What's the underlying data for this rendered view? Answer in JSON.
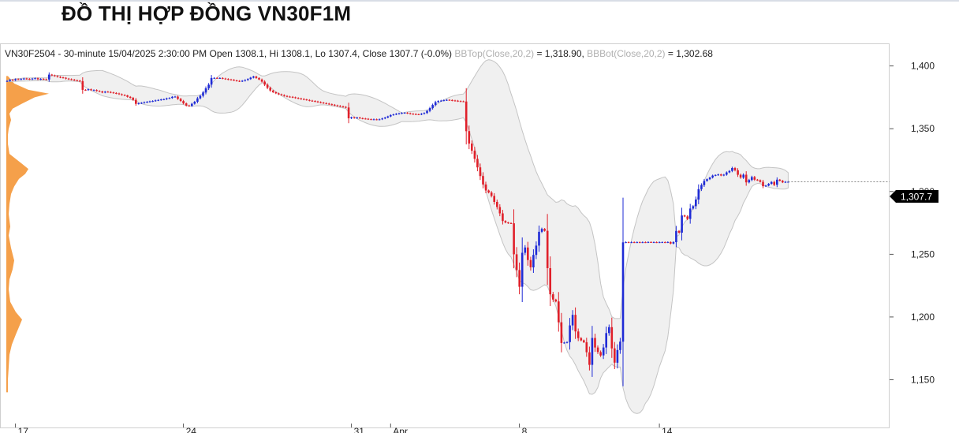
{
  "title": "ĐỒ THỊ HỢP ĐỒNG VN30F1M",
  "chart_data": {
    "type": "candlestick",
    "info": {
      "header": "VN30F2504 - 30-minute 15/04/2025 2:30:00 PM Open 1308.1, Hi 1308.1, Lo 1307.4, Close 1307.7 (-0.0%)",
      "bbtop_label": "BBTop(Close,20,2)",
      "bbtop_value": " = 1,318.90, ",
      "bbbot_label": "BBBot(Close,20,2)",
      "bbbot_value": " = 1,302.68"
    },
    "last_price": "1,307.7",
    "last_value": 1307.7,
    "ylim": [
      1112,
      1418
    ],
    "yticks": [
      {
        "value": 1400,
        "label": "1,400"
      },
      {
        "value": 1350,
        "label": "1,350"
      },
      {
        "value": 1300,
        "label": "1,300"
      },
      {
        "value": 1250,
        "label": "1,250"
      },
      {
        "value": 1200,
        "label": "1,200"
      },
      {
        "value": 1150,
        "label": "1,150"
      }
    ],
    "xticks": [
      {
        "index": 3,
        "label": "17"
      },
      {
        "index": 63,
        "label": "24"
      },
      {
        "index": 123,
        "label": "31"
      },
      {
        "index": 137,
        "label": "Apr"
      },
      {
        "index": 183,
        "label": "8"
      },
      {
        "index": 233,
        "label": "14"
      }
    ],
    "up_color": "#1f2bd6",
    "down_color": "#e0202a",
    "band_color": "#f0f0f0",
    "profile_color": "#f5a04a",
    "closes": [
      1388,
      1389,
      1388.6,
      1389.5,
      1389.3,
      1389.6,
      1390,
      1389.7,
      1389.4,
      1389.9,
      1390.2,
      1389.3,
      1389.7,
      1389.4,
      1389.2,
      1393.1,
      1392.5,
      1392,
      1391.3,
      1390.9,
      1390.6,
      1389.9,
      1389.5,
      1389.1,
      1388.6,
      1388.3,
      1387.9,
      1381,
      1380.8,
      1381.4,
      1380.7,
      1380.8,
      1380.1,
      1379.7,
      1378.9,
      1379.5,
      1379.3,
      1378.9,
      1378.5,
      1378.1,
      1377.5,
      1376.9,
      1376.5,
      1375.4,
      1374.6,
      1373,
      1369.8,
      1370.3,
      1370.6,
      1371.1,
      1371.5,
      1371.8,
      1372.1,
      1372.6,
      1372.9,
      1373.3,
      1373.5,
      1374.2,
      1374.5,
      1375.4,
      1375.6,
      1373.8,
      1372.1,
      1370.2,
      1368.5,
      1368.2,
      1369.9,
      1371.5,
      1374.2,
      1376.2,
      1378.9,
      1382.2,
      1385.1,
      1390.4,
      1390.5,
      1390.3,
      1390.4,
      1390,
      1389.6,
      1389.2,
      1389,
      1388.5,
      1388.1,
      1387.8,
      1388.2,
      1388.8,
      1389.6,
      1390.7,
      1391.6,
      1390.4,
      1389.2,
      1387.5,
      1385.1,
      1382.6,
      1380.4,
      1379.1,
      1378.2,
      1377.4,
      1376.8,
      1376.1,
      1375.6,
      1375.4,
      1375,
      1374.5,
      1374.1,
      1373.7,
      1373.3,
      1372.9,
      1372.4,
      1372.1,
      1371.7,
      1371.2,
      1370.8,
      1370.4,
      1370,
      1369.5,
      1369.1,
      1368.6,
      1368.2,
      1367.8,
      1367.4,
      1366.9,
      1358.3,
      1359.1,
      1358.5,
      1358.9,
      1358.4,
      1358.1,
      1357.9,
      1357.6,
      1357.4,
      1357.5,
      1357.3,
      1357.5,
      1358.2,
      1358.9,
      1359.8,
      1360.9,
      1361.4,
      1361.9,
      1362.2,
      1362.6,
      1362.7,
      1362.3,
      1361.9,
      1361.7,
      1361.5,
      1361.4,
      1361.9,
      1362.5,
      1364.2,
      1366.4,
      1368.9,
      1371.2,
      1372.1,
      1372.4,
      1372.7,
      1373,
      1372.8,
      1372.5,
      1372.3,
      1372,
      1371.8,
      1371.7,
      1348.1,
      1338.2,
      1332.5,
      1326,
      1319.2,
      1312.3,
      1305.6,
      1300.8,
      1299.2,
      1296.5,
      1291.7,
      1287.6,
      1282.6,
      1276.5,
      1275.3,
      1274.8,
      1274.7,
      1250,
      1237.4,
      1224.1,
      1251.2,
      1255.4,
      1245.4,
      1239.6,
      1249.5,
      1256.9,
      1267.9,
      1270.2,
      1268.7,
      1238.9,
      1218.1,
      1213.9,
      1212.4,
      1195.8,
      1179.3,
      1179.6,
      1180,
      1193.3,
      1201.7,
      1188.5,
      1183.2,
      1181.4,
      1179.9,
      1171.9,
      1161.9,
      1183.3,
      1175.7,
      1172.1,
      1169.4,
      1175.7,
      1187.2,
      1191.9,
      1175,
      1163.6,
      1173.7,
      1180.4,
      1259.5,
      1259.6,
      1259.5,
      1259.6,
      1259.5,
      1259.6,
      1259.5,
      1259.6,
      1259.5,
      1259.7,
      1259.6,
      1259.6,
      1259.5,
      1259.6,
      1259.6,
      1259.5,
      1259.7,
      1258.5,
      1259.7,
      1268.6,
      1267.2,
      1280.9,
      1280.1,
      1278.1,
      1286.4,
      1288.3,
      1293.6,
      1301.9,
      1305.1,
      1308.4,
      1309.8,
      1311.1,
      1312.7,
      1313.1,
      1313.6,
      1312.8,
      1313.4,
      1315.2,
      1316.4,
      1318.7,
      1316.9,
      1313.3,
      1311.1,
      1313.4,
      1307.3,
      1309.2,
      1311.5,
      1309.4,
      1309,
      1307.7,
      1304.2,
      1304.7,
      1306.1,
      1307.6,
      1305.3,
      1309.4,
      1308.6,
      1307.3,
      1307.7,
      1307.7
    ]
  }
}
